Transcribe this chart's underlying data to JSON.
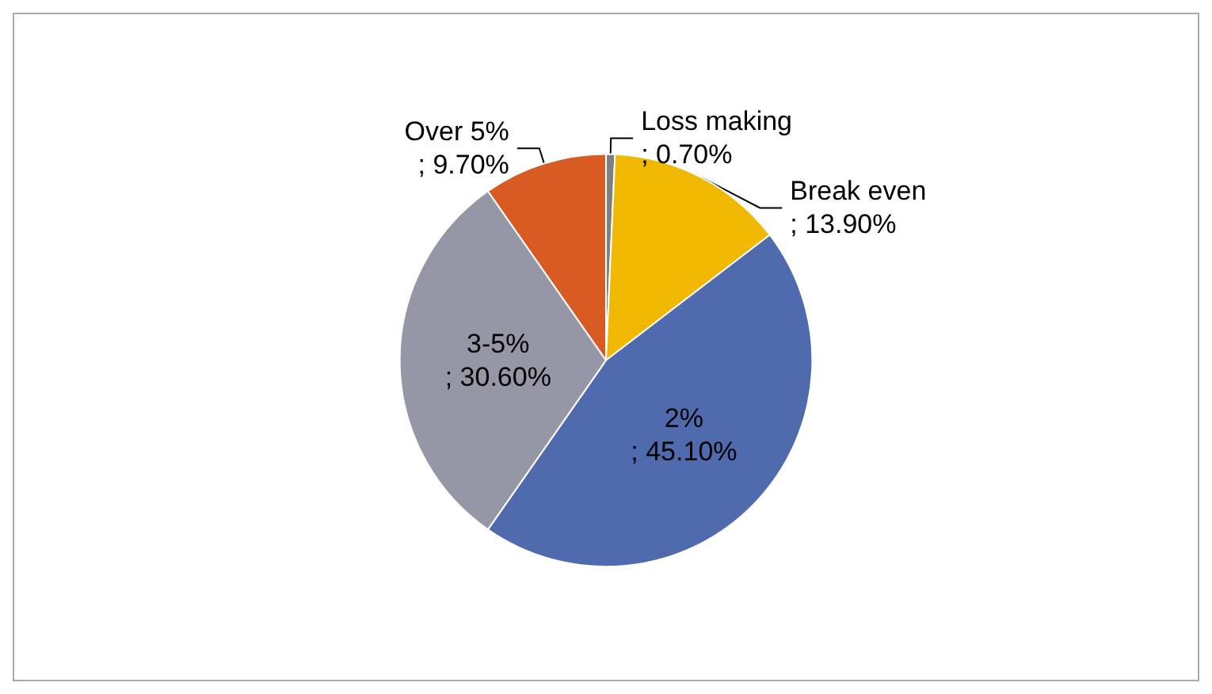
{
  "chart_data": {
    "type": "pie",
    "categories": [
      "Loss making",
      "Break even",
      "2%",
      "3-5%",
      "Over 5%"
    ],
    "values": [
      0.7,
      13.9,
      45.1,
      30.6,
      9.7
    ],
    "value_labels": [
      "; 0.70%",
      "; 13.90%",
      "; 45.10%",
      "; 30.60%",
      "; 9.70%"
    ],
    "colors": [
      "#7f7f7f",
      "#f0b800",
      "#4f6aad",
      "#9596a6",
      "#d95b24"
    ],
    "legend": false
  }
}
